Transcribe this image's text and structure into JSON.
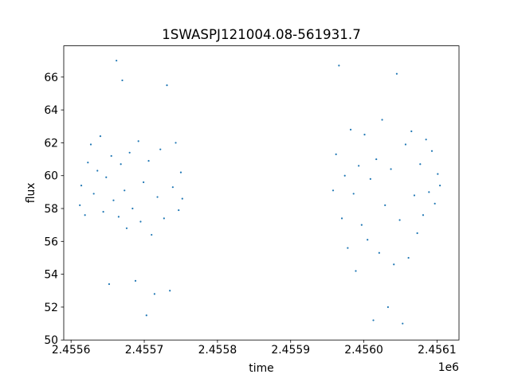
{
  "chart_data": {
    "type": "scatter",
    "title": "1SWASPJ121004.08-561931.7",
    "xlabel": "time",
    "ylabel": "flux",
    "x_offset_label": "1e6",
    "x_tick_labels": [
      "2.4556",
      "2.4557",
      "2.4558",
      "2.4559",
      "2.4560",
      "2.4561"
    ],
    "y_tick_labels": [
      "50",
      "52",
      "54",
      "56",
      "58",
      "60",
      "62",
      "64",
      "66"
    ],
    "xlim": [
      2455590,
      2456130
    ],
    "ylim": [
      50,
      67.9
    ],
    "grid": false,
    "legend": "none",
    "marker_color": "#1f77b4",
    "series": [
      {
        "points": [
          [
            2455612,
            58.2
          ],
          [
            2455614,
            59.4
          ],
          [
            2455619,
            57.6
          ],
          [
            2455623,
            60.8
          ],
          [
            2455627,
            61.9
          ],
          [
            2455631,
            58.9
          ],
          [
            2455636,
            60.3
          ],
          [
            2455640,
            62.4
          ],
          [
            2455644,
            57.8
          ],
          [
            2455648,
            59.9
          ],
          [
            2455652,
            53.4
          ],
          [
            2455655,
            61.2
          ],
          [
            2455658,
            58.5
          ],
          [
            2455662,
            67.0
          ],
          [
            2455665,
            57.5
          ],
          [
            2455668,
            60.7
          ],
          [
            2455670,
            65.8
          ],
          [
            2455673,
            59.1
          ],
          [
            2455676,
            56.8
          ],
          [
            2455680,
            61.4
          ],
          [
            2455684,
            58.0
          ],
          [
            2455688,
            53.6
          ],
          [
            2455692,
            62.1
          ],
          [
            2455695,
            57.2
          ],
          [
            2455699,
            59.6
          ],
          [
            2455703,
            51.5
          ],
          [
            2455706,
            60.9
          ],
          [
            2455710,
            56.4
          ],
          [
            2455714,
            52.8
          ],
          [
            2455718,
            58.7
          ],
          [
            2455722,
            61.6
          ],
          [
            2455727,
            57.4
          ],
          [
            2455731,
            65.5
          ],
          [
            2455735,
            53.0
          ],
          [
            2455739,
            59.3
          ],
          [
            2455743,
            62.0
          ],
          [
            2455747,
            57.9
          ],
          [
            2455750,
            60.2
          ],
          [
            2455752,
            58.6
          ],
          [
            2455958,
            59.1
          ],
          [
            2455962,
            61.3
          ],
          [
            2455966,
            66.7
          ],
          [
            2455970,
            57.4
          ],
          [
            2455974,
            60.0
          ],
          [
            2455978,
            55.6
          ],
          [
            2455982,
            62.8
          ],
          [
            2455986,
            58.9
          ],
          [
            2455989,
            54.2
          ],
          [
            2455993,
            60.6
          ],
          [
            2455997,
            57.0
          ],
          [
            2456001,
            62.5
          ],
          [
            2456005,
            56.1
          ],
          [
            2456009,
            59.8
          ],
          [
            2456013,
            51.2
          ],
          [
            2456017,
            61.0
          ],
          [
            2456021,
            55.3
          ],
          [
            2456025,
            63.4
          ],
          [
            2456029,
            58.2
          ],
          [
            2456033,
            52.0
          ],
          [
            2456037,
            60.4
          ],
          [
            2456041,
            54.6
          ],
          [
            2456045,
            66.2
          ],
          [
            2456049,
            57.3
          ],
          [
            2456053,
            51.0
          ],
          [
            2456057,
            61.9
          ],
          [
            2456061,
            55.0
          ],
          [
            2456065,
            62.7
          ],
          [
            2456069,
            58.8
          ],
          [
            2456073,
            56.5
          ],
          [
            2456077,
            60.7
          ],
          [
            2456081,
            57.6
          ],
          [
            2456085,
            62.2
          ],
          [
            2456089,
            59.0
          ],
          [
            2456093,
            61.5
          ],
          [
            2456097,
            58.3
          ],
          [
            2456101,
            60.1
          ],
          [
            2456104,
            59.4
          ]
        ]
      }
    ]
  }
}
